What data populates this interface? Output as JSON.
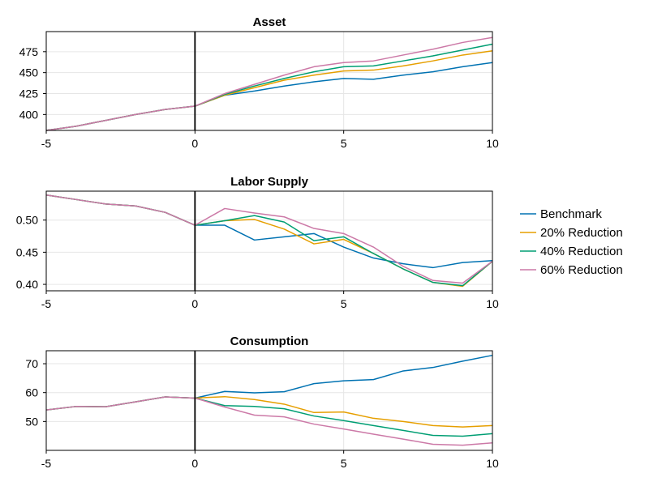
{
  "colors": {
    "benchmark": "#0072b2",
    "r20": "#e69f00",
    "r40": "#009e73",
    "r60": "#cc79a7",
    "axis": "#000000",
    "grid": "#e6e6e6"
  },
  "legend": {
    "placement": "right",
    "entries": [
      "Benchmark",
      "20% Reduction",
      "40% Reduction",
      "60% Reduction"
    ]
  },
  "chart_data": [
    {
      "type": "line",
      "title": "Asset",
      "xlabel": "",
      "ylabel": "",
      "xlim": [
        -5,
        10
      ],
      "ylim": [
        381,
        499
      ],
      "xticks": [
        -5,
        0,
        5,
        10
      ],
      "yticks": [
        400,
        425,
        450,
        475
      ],
      "xtick_labels": [
        "-5",
        "0",
        "5",
        "10"
      ],
      "ytick_labels": [
        "400",
        "425",
        "450",
        "475"
      ],
      "grid": true,
      "vline_x": 0,
      "x": [
        -5,
        -4,
        -3,
        -2,
        -1,
        0,
        1,
        2,
        3,
        4,
        5,
        6,
        7,
        8,
        9,
        10
      ],
      "series": [
        {
          "name": "Benchmark",
          "values": [
            381,
            386,
            393,
            400,
            406,
            410,
            423,
            428,
            434,
            439,
            443,
            442,
            447,
            451,
            457,
            462
          ]
        },
        {
          "name": "20% Reduction",
          "values": [
            381,
            386,
            393,
            400,
            406,
            410,
            423,
            432,
            441,
            447,
            452,
            453,
            458,
            464,
            471,
            476
          ]
        },
        {
          "name": "40% Reduction",
          "values": [
            381,
            386,
            393,
            400,
            406,
            410,
            424,
            434,
            443,
            451,
            457,
            458,
            464,
            470,
            477,
            484
          ]
        },
        {
          "name": "60% Reduction",
          "values": [
            381,
            386,
            393,
            400,
            406,
            410,
            425,
            436,
            447,
            457,
            462,
            464,
            471,
            478,
            486,
            492
          ]
        }
      ]
    },
    {
      "type": "line",
      "title": "Labor Supply",
      "xlabel": "",
      "ylabel": "",
      "xlim": [
        -5,
        10
      ],
      "ylim": [
        0.39,
        0.545
      ],
      "xticks": [
        -5,
        0,
        5,
        10
      ],
      "yticks": [
        0.4,
        0.45,
        0.5
      ],
      "xtick_labels": [
        "-5",
        "0",
        "5",
        "10"
      ],
      "ytick_labels": [
        "0.40",
        "0.45",
        "0.50"
      ],
      "grid": true,
      "vline_x": 0,
      "x": [
        -5,
        -4,
        -3,
        -2,
        -1,
        0,
        1,
        2,
        3,
        4,
        5,
        6,
        7,
        8,
        9,
        10
      ],
      "series": [
        {
          "name": "Benchmark",
          "values": [
            0.539,
            0.532,
            0.525,
            0.522,
            0.512,
            0.492,
            0.492,
            0.469,
            0.474,
            0.479,
            0.458,
            0.441,
            0.432,
            0.426,
            0.434,
            0.437
          ]
        },
        {
          "name": "20% Reduction",
          "values": [
            0.539,
            0.532,
            0.525,
            0.522,
            0.512,
            0.492,
            0.499,
            0.501,
            0.486,
            0.463,
            0.47,
            0.448,
            0.424,
            0.403,
            0.397,
            0.436
          ]
        },
        {
          "name": "40% Reduction",
          "values": [
            0.539,
            0.532,
            0.525,
            0.522,
            0.512,
            0.492,
            0.499,
            0.507,
            0.497,
            0.468,
            0.474,
            0.448,
            0.424,
            0.403,
            0.398,
            0.436
          ]
        },
        {
          "name": "60% Reduction",
          "values": [
            0.539,
            0.532,
            0.525,
            0.522,
            0.512,
            0.492,
            0.518,
            0.511,
            0.505,
            0.487,
            0.479,
            0.458,
            0.428,
            0.406,
            0.402,
            0.436
          ]
        }
      ]
    },
    {
      "type": "line",
      "title": "Consumption",
      "xlabel": "",
      "ylabel": "",
      "xlim": [
        -5,
        10
      ],
      "ylim": [
        40,
        74.5
      ],
      "xticks": [
        -5,
        0,
        5,
        10
      ],
      "yticks": [
        50,
        60,
        70
      ],
      "xtick_labels": [
        "-5",
        "0",
        "5",
        "10"
      ],
      "ytick_labels": [
        "50",
        "60",
        "70"
      ],
      "grid": true,
      "vline_x": 0,
      "x": [
        -5,
        -4,
        -3,
        -2,
        -1,
        0,
        1,
        2,
        3,
        4,
        5,
        6,
        7,
        8,
        9,
        10
      ],
      "series": [
        {
          "name": "Benchmark",
          "values": [
            54,
            55.2,
            55.1,
            56.8,
            58.5,
            58.1,
            60.4,
            59.9,
            60.3,
            63.1,
            64.1,
            64.5,
            67.5,
            68.7,
            70.9,
            72.9
          ]
        },
        {
          "name": "20% Reduction",
          "values": [
            54,
            55.2,
            55.1,
            56.8,
            58.5,
            58.1,
            58.6,
            57.6,
            56,
            53.1,
            53.3,
            51.1,
            50,
            48.6,
            48.1,
            48.6
          ]
        },
        {
          "name": "40% Reduction",
          "values": [
            54,
            55.2,
            55.1,
            56.8,
            58.5,
            58.1,
            55.5,
            55.2,
            54.4,
            51.9,
            50.3,
            48.6,
            46.9,
            45.2,
            44.9,
            45.8
          ]
        },
        {
          "name": "60% Reduction",
          "values": [
            54,
            55.2,
            55.1,
            56.8,
            58.5,
            58.1,
            55,
            52.2,
            51.6,
            49.1,
            47.4,
            45.6,
            43.9,
            42.1,
            41.8,
            42.6
          ]
        }
      ]
    }
  ]
}
